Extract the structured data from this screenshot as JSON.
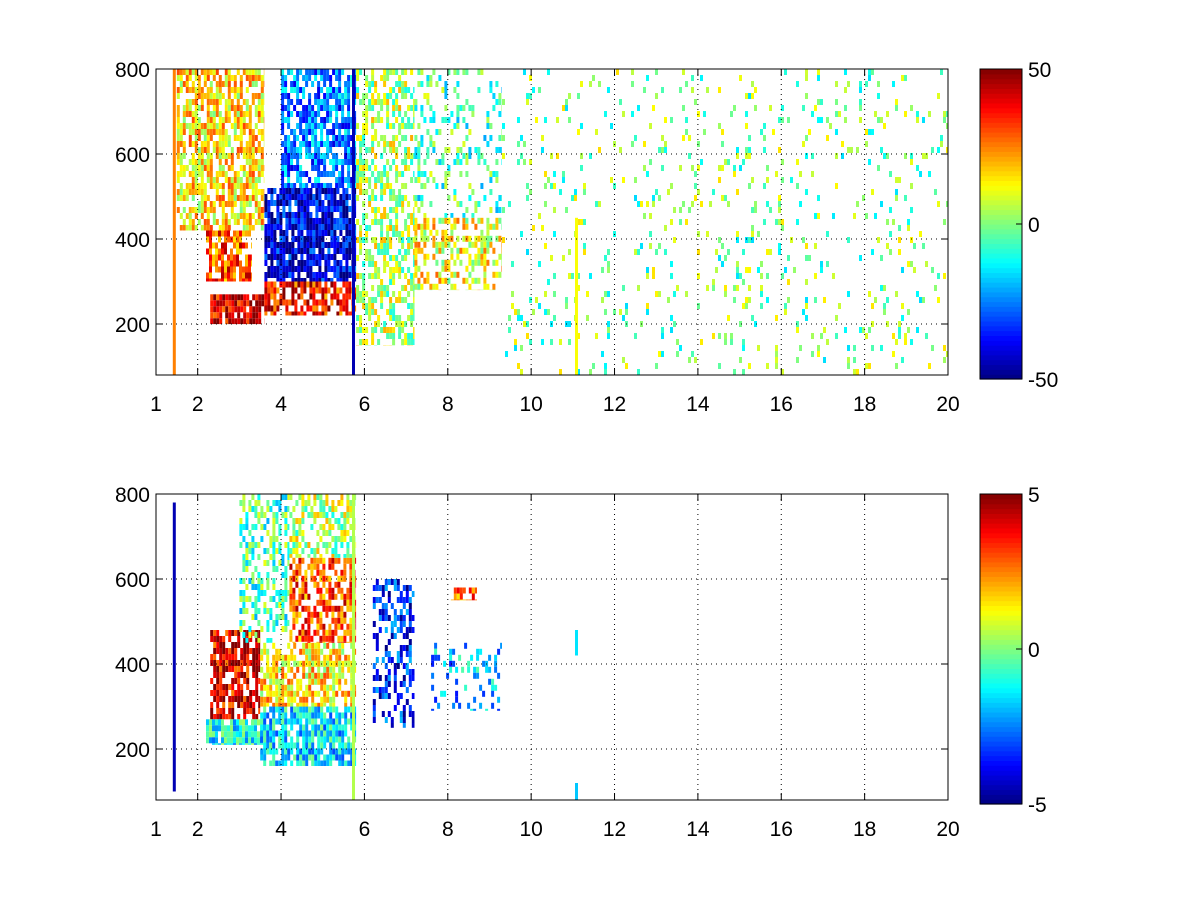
{
  "chart_data": [
    {
      "type": "heatmap",
      "title": "",
      "xlabel": "",
      "ylabel": "",
      "xlim": [
        1,
        20
      ],
      "ylim": [
        80,
        800
      ],
      "x_ticks": [
        1,
        2,
        4,
        6,
        8,
        10,
        12,
        14,
        16,
        18,
        20
      ],
      "y_ticks": [
        200,
        400,
        600,
        800
      ],
      "grid": true,
      "colormap": "jet",
      "color_limits": [
        -50,
        50
      ],
      "colorbar_ticks": [
        50,
        0,
        -50
      ],
      "background_color": "#ffffff",
      "regions": [
        {
          "x0": 2.3,
          "x1": 3.6,
          "y0": 200,
          "y1": 270,
          "value": 40,
          "density": 0.9
        },
        {
          "x0": 2.2,
          "x1": 3.3,
          "y0": 300,
          "y1": 420,
          "value": 30,
          "density": 0.8
        },
        {
          "x0": 3.6,
          "x1": 5.8,
          "y0": 220,
          "y1": 300,
          "value": 35,
          "density": 0.7
        },
        {
          "x0": 3.6,
          "x1": 5.8,
          "y0": 300,
          "y1": 520,
          "value": -40,
          "density": 0.8
        },
        {
          "x0": 4.0,
          "x1": 5.8,
          "y0": 520,
          "y1": 800,
          "value": -25,
          "density": 0.7
        },
        {
          "x0": 1.5,
          "x1": 3.6,
          "y0": 420,
          "y1": 800,
          "value": 15,
          "density": 0.7
        },
        {
          "x0": 5.8,
          "x1": 7.2,
          "y0": 150,
          "y1": 800,
          "value": 5,
          "density": 0.5
        },
        {
          "x0": 7.2,
          "x1": 9.3,
          "y0": 280,
          "y1": 450,
          "value": 12,
          "density": 0.5
        },
        {
          "x0": 7.2,
          "x1": 9.3,
          "y0": 450,
          "y1": 800,
          "value": -5,
          "density": 0.25
        },
        {
          "x0": 9.3,
          "x1": 20,
          "y0": 80,
          "y1": 800,
          "value": 0,
          "density": 0.09
        }
      ],
      "streaks": [
        {
          "x": 11.1,
          "y0": 80,
          "y1": 450,
          "value": 12
        },
        {
          "x": 5.75,
          "y0": 80,
          "y1": 800,
          "value": -45
        },
        {
          "x": 1.45,
          "y0": 80,
          "y1": 800,
          "value": 25
        }
      ]
    },
    {
      "type": "heatmap",
      "title": "",
      "xlabel": "",
      "ylabel": "",
      "xlim": [
        1,
        20
      ],
      "ylim": [
        80,
        800
      ],
      "x_ticks": [
        1,
        2,
        4,
        6,
        8,
        10,
        12,
        14,
        16,
        18,
        20
      ],
      "y_ticks": [
        200,
        400,
        600,
        800
      ],
      "grid": true,
      "colormap": "jet",
      "color_limits": [
        -5,
        5
      ],
      "colorbar_ticks": [
        5,
        0,
        -5
      ],
      "background_color": "#ffffff",
      "regions": [
        {
          "x0": 2.3,
          "x1": 3.5,
          "y0": 270,
          "y1": 480,
          "value": 4,
          "density": 0.75
        },
        {
          "x0": 2.2,
          "x1": 3.6,
          "y0": 210,
          "y1": 270,
          "value": -1.2,
          "density": 0.85
        },
        {
          "x0": 3.5,
          "x1": 5.8,
          "y0": 160,
          "y1": 300,
          "value": -1.5,
          "density": 0.8
        },
        {
          "x0": 3.5,
          "x1": 5.8,
          "y0": 300,
          "y1": 450,
          "value": 1.5,
          "density": 0.7
        },
        {
          "x0": 4.2,
          "x1": 5.8,
          "y0": 450,
          "y1": 650,
          "value": 3,
          "density": 0.65
        },
        {
          "x0": 3.0,
          "x1": 4.2,
          "y0": 450,
          "y1": 800,
          "value": -0.5,
          "density": 0.45
        },
        {
          "x0": 4.2,
          "x1": 5.8,
          "y0": 650,
          "y1": 800,
          "value": 0.5,
          "density": 0.5
        },
        {
          "x0": 6.2,
          "x1": 7.2,
          "y0": 250,
          "y1": 600,
          "value": -3.5,
          "density": 0.45
        },
        {
          "x0": 7.6,
          "x1": 9.3,
          "y0": 290,
          "y1": 450,
          "value": -2,
          "density": 0.25
        },
        {
          "x0": 8.0,
          "x1": 8.7,
          "y0": 550,
          "y1": 580,
          "value": 3,
          "density": 0.6
        }
      ],
      "streaks": [
        {
          "x": 1.45,
          "y0": 100,
          "y1": 780,
          "value": -4.5
        },
        {
          "x": 5.75,
          "y0": 80,
          "y1": 800,
          "value": 0.5
        },
        {
          "x": 11.1,
          "y0": 420,
          "y1": 480,
          "value": -1.5
        },
        {
          "x": 11.1,
          "y0": 80,
          "y1": 120,
          "value": -1.8
        }
      ]
    }
  ]
}
